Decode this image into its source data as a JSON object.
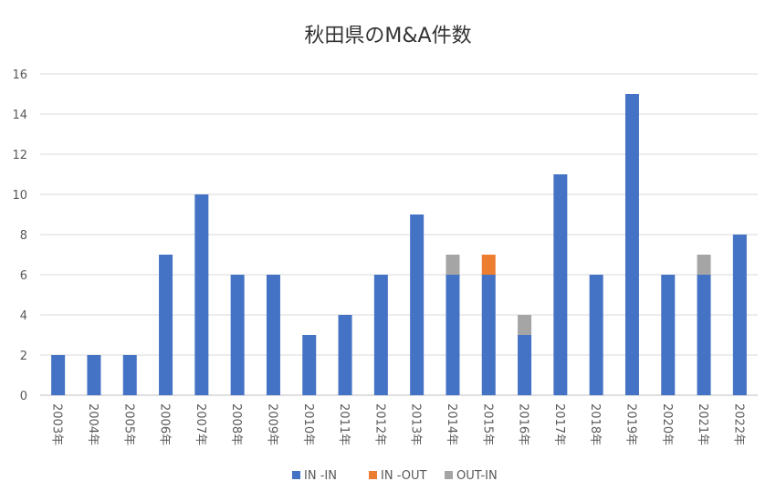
{
  "chart_data": {
    "type": "bar",
    "stacked": true,
    "title": "秋田県のM&A件数",
    "xlabel": "",
    "ylabel": "",
    "categories": [
      "2003年",
      "2004年",
      "2005年",
      "2006年",
      "2007年",
      "2008年",
      "2009年",
      "2010年",
      "2011年",
      "2012年",
      "2013年",
      "2014年",
      "2015年",
      "2016年",
      "2017年",
      "2018年",
      "2019年",
      "2020年",
      "2021年",
      "2022年"
    ],
    "series": [
      {
        "name": "IN -IN",
        "color": "#4472C4",
        "values": [
          2,
          2,
          2,
          7,
          10,
          6,
          6,
          3,
          4,
          6,
          9,
          6,
          6,
          3,
          11,
          6,
          15,
          6,
          6,
          8
        ]
      },
      {
        "name": "IN -OUT",
        "color": "#ED7D31",
        "values": [
          0,
          0,
          0,
          0,
          0,
          0,
          0,
          0,
          0,
          0,
          0,
          0,
          1,
          0,
          0,
          0,
          0,
          0,
          0,
          0
        ]
      },
      {
        "name": "OUT-IN",
        "color": "#A5A5A5",
        "values": [
          0,
          0,
          0,
          0,
          0,
          0,
          0,
          0,
          0,
          0,
          0,
          1,
          0,
          1,
          0,
          0,
          0,
          0,
          1,
          0
        ]
      }
    ],
    "ylim": [
      0,
      16
    ],
    "yticks": [
      0,
      2,
      4,
      6,
      8,
      10,
      12,
      14,
      16
    ],
    "grid": true,
    "legend": "bottom"
  }
}
